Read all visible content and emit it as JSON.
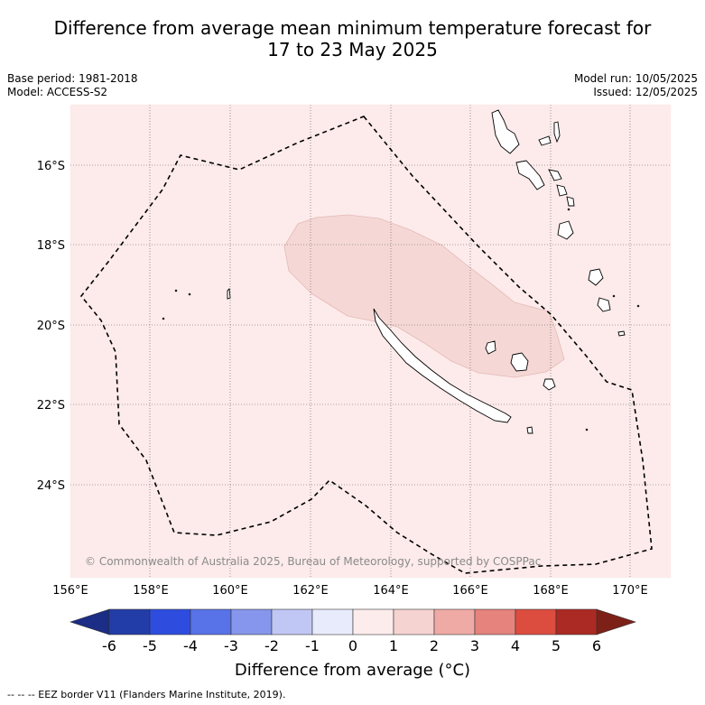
{
  "title_line1": "Difference from average mean minimum temperature forecast for",
  "title_line2": "17 to 23 May 2025",
  "base_period": "Base period: 1981-2018",
  "model": "Model: ACCESS-S2",
  "model_run": "Model run: 10/05/2025",
  "issued": "Issued: 12/05/2025",
  "lat_ticks": [
    "16°S",
    "18°S",
    "20°S",
    "22°S",
    "24°S"
  ],
  "lon_ticks": [
    "156°E",
    "158°E",
    "160°E",
    "162°E",
    "164°E",
    "166°E",
    "168°E",
    "170°E"
  ],
  "copyright": "© Commonwealth of Australia 2025, Bureau of Meteorology, supported by COSPPac",
  "colorbar": {
    "ticks": [
      "-6",
      "-5",
      "-4",
      "-3",
      "-2",
      "-1",
      "0",
      "1",
      "2",
      "3",
      "4",
      "5",
      "6"
    ],
    "colors": [
      "#233da8",
      "#2e4ddf",
      "#5872e8",
      "#8596ec",
      "#c0c7f4",
      "#e8ebfb",
      "#fceceb",
      "#f5d3d1",
      "#efaaa6",
      "#e5837c",
      "#dc4d40",
      "#ab2a23"
    ],
    "under_color": "#1b2d84",
    "over_color": "#7d2118",
    "title": "Difference from average (°C)"
  },
  "map_colors": {
    "background_anomaly": "#fcebea",
    "anomaly_1_to_2": "#f5d8d6"
  },
  "legend_note": "-- -- -- EEZ border V11 (Flanders Marine Institute, 2019)."
}
